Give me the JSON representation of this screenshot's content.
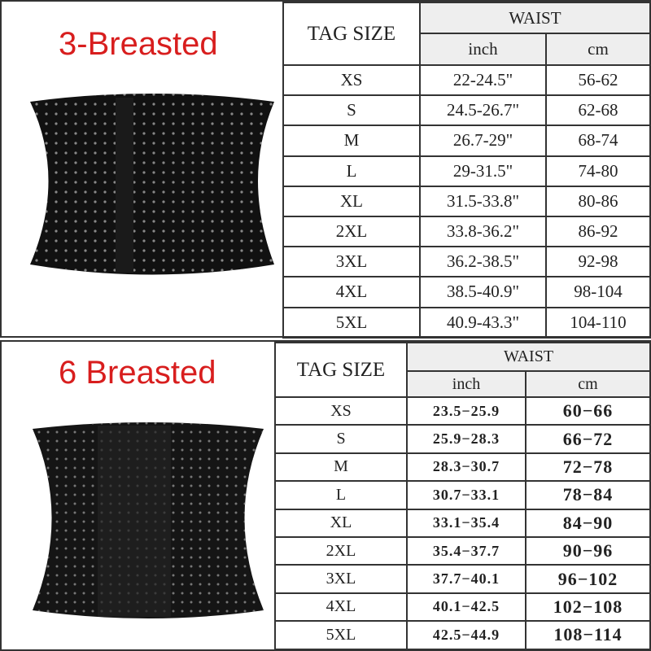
{
  "accent_color": "#d81e1e",
  "top_chart": {
    "title": "3-Breasted",
    "headers": {
      "tag_size": "TAG SIZE",
      "waist": "WAIST",
      "inch": "inch",
      "cm": "cm"
    },
    "rows": [
      {
        "size": "XS",
        "inch": "22-24.5\"",
        "cm": "56-62"
      },
      {
        "size": "S",
        "inch": "24.5-26.7\"",
        "cm": "62-68"
      },
      {
        "size": "M",
        "inch": "26.7-29\"",
        "cm": "68-74"
      },
      {
        "size": "L",
        "inch": "29-31.5\"",
        "cm": "74-80"
      },
      {
        "size": "XL",
        "inch": "31.5-33.8\"",
        "cm": "80-86"
      },
      {
        "size": "2XL",
        "inch": "33.8-36.2\"",
        "cm": "86-92"
      },
      {
        "size": "3XL",
        "inch": "36.2-38.5\"",
        "cm": "92-98"
      },
      {
        "size": "4XL",
        "inch": "38.5-40.9\"",
        "cm": "98-104"
      },
      {
        "size": "5XL",
        "inch": "40.9-43.3\"",
        "cm": "104-110"
      }
    ]
  },
  "bottom_chart": {
    "title": "6 Breasted",
    "headers": {
      "tag_size": "TAG SIZE",
      "waist": "WAIST",
      "inch": "inch",
      "cm": "cm"
    },
    "rows": [
      {
        "size": "XS",
        "inch": "23.5−25.9",
        "cm": "60−66"
      },
      {
        "size": "S",
        "inch": "25.9−28.3",
        "cm": "66−72"
      },
      {
        "size": "M",
        "inch": "28.3−30.7",
        "cm": "72−78"
      },
      {
        "size": "L",
        "inch": "30.7−33.1",
        "cm": "78−84"
      },
      {
        "size": "XL",
        "inch": "33.1−35.4",
        "cm": "84−90"
      },
      {
        "size": "2XL",
        "inch": "35.4−37.7",
        "cm": "90−96"
      },
      {
        "size": "3XL",
        "inch": "37.7−40.1",
        "cm": "96−102"
      },
      {
        "size": "4XL",
        "inch": "40.1−42.5",
        "cm": "102−108"
      },
      {
        "size": "5XL",
        "inch": "42.5−44.9",
        "cm": "108−114"
      }
    ]
  }
}
